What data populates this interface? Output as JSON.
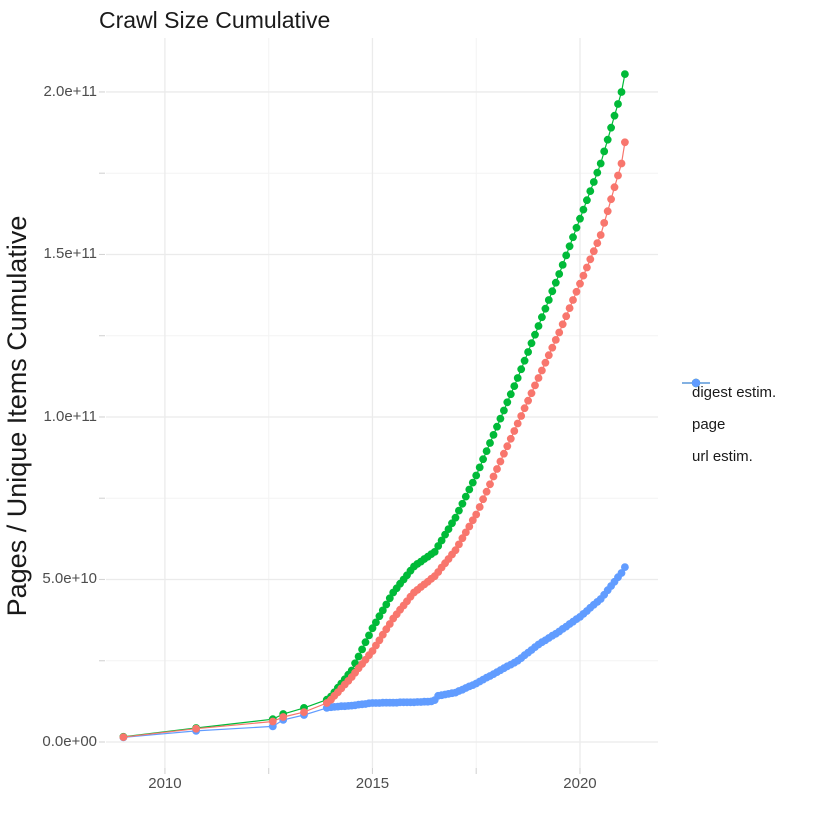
{
  "title": "Crawl Size Cumulative",
  "y_axis_label": "Pages / Unique Items Cumulative",
  "chart_data": {
    "type": "line",
    "title": "Crawl Size Cumulative",
    "xlabel": "",
    "ylabel": "Pages / Unique Items Cumulative",
    "unit": "billions of pages (1e9)",
    "grid": "on",
    "legend_position": "right",
    "style": {
      "background": "#ffffff",
      "major_grid_color": "#ebebeb",
      "minor_grid_color": "#f3f3f3",
      "tick_mark_color": "#d4d4d4",
      "tick_label_color": "#4d4d4d",
      "text_color": "#1a1a1a"
    },
    "x_axis": {
      "domain": [
        2008.58,
        2021.88
      ],
      "ticks": [
        {
          "label": "2010",
          "value": 2010
        },
        {
          "label": "2015",
          "value": 2015
        },
        {
          "label": "2020",
          "value": 2020
        }
      ],
      "minor": [
        2012.5,
        2017.5
      ]
    },
    "y_axis": {
      "domain": [
        -8,
        216.6
      ],
      "ticks": [
        {
          "label": "0.0e+00",
          "value": 0
        },
        {
          "label": "5.0e+10",
          "value": 50
        },
        {
          "label": "1.0e+11",
          "value": 100
        },
        {
          "label": "1.5e+11",
          "value": 150
        },
        {
          "label": "2.0e+11",
          "value": 200
        }
      ],
      "minor": [
        25,
        75,
        125,
        175
      ]
    },
    "series": [
      {
        "name": "digest estim.",
        "color": "#F8766D",
        "points": [
          [
            2009,
            1.5
          ],
          [
            2010.75,
            4.1
          ],
          [
            2012.6,
            6.3
          ],
          [
            2012.85,
            7.7
          ],
          [
            2013.35,
            9.2
          ],
          [
            2013.9,
            12
          ],
          [
            2014,
            13
          ],
          [
            2014.083,
            14.2
          ],
          [
            2014.167,
            15.3
          ],
          [
            2014.25,
            16.5
          ],
          [
            2014.333,
            17.7
          ],
          [
            2014.417,
            18.8
          ],
          [
            2014.5,
            20
          ],
          [
            2014.583,
            21.3
          ],
          [
            2014.667,
            22.7
          ],
          [
            2014.75,
            24
          ],
          [
            2014.833,
            25.3
          ],
          [
            2014.917,
            26.7
          ],
          [
            2015,
            28
          ],
          [
            2015.083,
            29.7
          ],
          [
            2015.167,
            31.3
          ],
          [
            2015.25,
            33
          ],
          [
            2015.333,
            34.7
          ],
          [
            2015.417,
            36.3
          ],
          [
            2015.5,
            38
          ],
          [
            2015.583,
            39.3
          ],
          [
            2015.667,
            40.7
          ],
          [
            2015.75,
            42
          ],
          [
            2015.833,
            43.3
          ],
          [
            2015.917,
            44.7
          ],
          [
            2016,
            46
          ],
          [
            2016.083,
            46.8
          ],
          [
            2016.167,
            47.7
          ],
          [
            2016.25,
            48.5
          ],
          [
            2016.333,
            49.3
          ],
          [
            2016.417,
            50.2
          ],
          [
            2016.5,
            51
          ],
          [
            2016.583,
            52.3
          ],
          [
            2016.667,
            53.7
          ],
          [
            2016.75,
            55
          ],
          [
            2016.833,
            56.3
          ],
          [
            2016.917,
            57.7
          ],
          [
            2017,
            59
          ],
          [
            2017.083,
            60.8
          ],
          [
            2017.167,
            62.7
          ],
          [
            2017.25,
            64.5
          ],
          [
            2017.333,
            66.3
          ],
          [
            2017.417,
            68.2
          ],
          [
            2017.5,
            70
          ],
          [
            2017.583,
            72.3
          ],
          [
            2017.667,
            74.7
          ],
          [
            2017.75,
            77
          ],
          [
            2017.833,
            79.3
          ],
          [
            2017.917,
            81.7
          ],
          [
            2018,
            84
          ],
          [
            2018.083,
            86.3
          ],
          [
            2018.167,
            88.7
          ],
          [
            2018.25,
            91
          ],
          [
            2018.333,
            93.3
          ],
          [
            2018.417,
            95.7
          ],
          [
            2018.5,
            98
          ],
          [
            2018.583,
            100.3
          ],
          [
            2018.667,
            102.7
          ],
          [
            2018.75,
            105
          ],
          [
            2018.833,
            107.3
          ],
          [
            2018.917,
            109.7
          ],
          [
            2019,
            112
          ],
          [
            2019.083,
            114.3
          ],
          [
            2019.167,
            116.7
          ],
          [
            2019.25,
            119
          ],
          [
            2019.333,
            121.3
          ],
          [
            2019.417,
            123.7
          ],
          [
            2019.5,
            126
          ],
          [
            2019.583,
            128.5
          ],
          [
            2019.667,
            131
          ],
          [
            2019.75,
            133.5
          ],
          [
            2019.833,
            136
          ],
          [
            2019.917,
            138.5
          ],
          [
            2020,
            141
          ],
          [
            2020.083,
            143.5
          ],
          [
            2020.167,
            146
          ],
          [
            2020.25,
            148.5
          ],
          [
            2020.333,
            151
          ],
          [
            2020.417,
            153.5
          ],
          [
            2020.5,
            156
          ],
          [
            2020.583,
            159.7
          ],
          [
            2020.667,
            163.3
          ],
          [
            2020.75,
            167
          ],
          [
            2020.833,
            170.7
          ],
          [
            2020.917,
            174.3
          ],
          [
            2021,
            178
          ],
          [
            2021.083,
            184.5
          ]
        ]
      },
      {
        "name": "page",
        "color": "#00BA38",
        "points": [
          [
            2009,
            1.6
          ],
          [
            2010.75,
            4.3
          ],
          [
            2012.6,
            7
          ],
          [
            2012.85,
            8.6
          ],
          [
            2013.35,
            10.5
          ],
          [
            2013.9,
            13
          ],
          [
            2014,
            14
          ],
          [
            2014.083,
            15.3
          ],
          [
            2014.167,
            16.7
          ],
          [
            2014.25,
            18
          ],
          [
            2014.333,
            19.3
          ],
          [
            2014.417,
            20.7
          ],
          [
            2014.5,
            22
          ],
          [
            2014.583,
            24.2
          ],
          [
            2014.667,
            26.3
          ],
          [
            2014.75,
            28.5
          ],
          [
            2014.833,
            30.7
          ],
          [
            2014.917,
            32.8
          ],
          [
            2015,
            35
          ],
          [
            2015.083,
            36.8
          ],
          [
            2015.167,
            38.7
          ],
          [
            2015.25,
            40.5
          ],
          [
            2015.333,
            42.3
          ],
          [
            2015.417,
            44.2
          ],
          [
            2015.5,
            46
          ],
          [
            2015.583,
            47.3
          ],
          [
            2015.667,
            48.7
          ],
          [
            2015.75,
            50
          ],
          [
            2015.833,
            51.3
          ],
          [
            2015.917,
            52.7
          ],
          [
            2016,
            54
          ],
          [
            2016.083,
            54.8
          ],
          [
            2016.167,
            55.5
          ],
          [
            2016.25,
            56.3
          ],
          [
            2016.333,
            57
          ],
          [
            2016.417,
            57.8
          ],
          [
            2016.5,
            58.5
          ],
          [
            2016.583,
            60.3
          ],
          [
            2016.667,
            62
          ],
          [
            2016.75,
            63.8
          ],
          [
            2016.833,
            65.5
          ],
          [
            2016.917,
            67.3
          ],
          [
            2017,
            69
          ],
          [
            2017.083,
            71.2
          ],
          [
            2017.167,
            73.3
          ],
          [
            2017.25,
            75.5
          ],
          [
            2017.333,
            77.7
          ],
          [
            2017.417,
            79.8
          ],
          [
            2017.5,
            82
          ],
          [
            2017.583,
            84.5
          ],
          [
            2017.667,
            87
          ],
          [
            2017.75,
            89.5
          ],
          [
            2017.833,
            92
          ],
          [
            2017.917,
            94.5
          ],
          [
            2018,
            97
          ],
          [
            2018.083,
            99.5
          ],
          [
            2018.167,
            102
          ],
          [
            2018.25,
            104.5
          ],
          [
            2018.333,
            107
          ],
          [
            2018.417,
            109.5
          ],
          [
            2018.5,
            112
          ],
          [
            2018.583,
            114.7
          ],
          [
            2018.667,
            117.3
          ],
          [
            2018.75,
            120
          ],
          [
            2018.833,
            122.7
          ],
          [
            2018.917,
            125.3
          ],
          [
            2019,
            128
          ],
          [
            2019.083,
            130.7
          ],
          [
            2019.167,
            133.3
          ],
          [
            2019.25,
            136
          ],
          [
            2019.333,
            138.7
          ],
          [
            2019.417,
            141.3
          ],
          [
            2019.5,
            144
          ],
          [
            2019.583,
            146.8
          ],
          [
            2019.667,
            149.7
          ],
          [
            2019.75,
            152.5
          ],
          [
            2019.833,
            155.3
          ],
          [
            2019.917,
            158.2
          ],
          [
            2020,
            161
          ],
          [
            2020.083,
            163.8
          ],
          [
            2020.167,
            166.7
          ],
          [
            2020.25,
            169.5
          ],
          [
            2020.333,
            172.3
          ],
          [
            2020.417,
            175.2
          ],
          [
            2020.5,
            178
          ],
          [
            2020.583,
            181.7
          ],
          [
            2020.667,
            185.3
          ],
          [
            2020.75,
            189
          ],
          [
            2020.833,
            192.7
          ],
          [
            2020.917,
            196.3
          ],
          [
            2021,
            200
          ],
          [
            2021.083,
            205.5
          ]
        ]
      },
      {
        "name": "url estim.",
        "color": "#619CFF",
        "points": [
          [
            2009,
            1.4
          ],
          [
            2010.75,
            3.4
          ],
          [
            2012.6,
            4.8
          ],
          [
            2012.85,
            6.8
          ],
          [
            2013.35,
            8.3
          ],
          [
            2013.9,
            10.5
          ],
          [
            2014,
            10.7
          ],
          [
            2014.083,
            10.8
          ],
          [
            2014.167,
            10.9
          ],
          [
            2014.25,
            11
          ],
          [
            2014.333,
            11
          ],
          [
            2014.417,
            11.1
          ],
          [
            2014.5,
            11.2
          ],
          [
            2014.583,
            11.3
          ],
          [
            2014.667,
            11.5
          ],
          [
            2014.75,
            11.6
          ],
          [
            2014.833,
            11.7
          ],
          [
            2014.917,
            11.9
          ],
          [
            2015,
            12
          ],
          [
            2015.083,
            12
          ],
          [
            2015.167,
            12
          ],
          [
            2015.25,
            12.1
          ],
          [
            2015.333,
            12.1
          ],
          [
            2015.417,
            12.1
          ],
          [
            2015.5,
            12.1
          ],
          [
            2015.583,
            12.1
          ],
          [
            2015.667,
            12.2
          ],
          [
            2015.75,
            12.2
          ],
          [
            2015.833,
            12.2
          ],
          [
            2015.917,
            12.2
          ],
          [
            2016,
            12.2
          ],
          [
            2016.083,
            12.3
          ],
          [
            2016.167,
            12.3
          ],
          [
            2016.25,
            12.4
          ],
          [
            2016.333,
            12.4
          ],
          [
            2016.417,
            12.5
          ],
          [
            2016.5,
            12.9
          ],
          [
            2016.583,
            14.2
          ],
          [
            2016.667,
            14.4
          ],
          [
            2016.75,
            14.6
          ],
          [
            2016.833,
            14.8
          ],
          [
            2016.917,
            15
          ],
          [
            2017,
            15.2
          ],
          [
            2017.083,
            15.7
          ],
          [
            2017.167,
            16.1
          ],
          [
            2017.25,
            16.6
          ],
          [
            2017.333,
            17.1
          ],
          [
            2017.417,
            17.5
          ],
          [
            2017.5,
            18
          ],
          [
            2017.583,
            18.6
          ],
          [
            2017.667,
            19.2
          ],
          [
            2017.75,
            19.8
          ],
          [
            2017.833,
            20.3
          ],
          [
            2017.917,
            20.9
          ],
          [
            2018,
            21.5
          ],
          [
            2018.083,
            22.1
          ],
          [
            2018.167,
            22.7
          ],
          [
            2018.25,
            23.3
          ],
          [
            2018.333,
            23.8
          ],
          [
            2018.417,
            24.4
          ],
          [
            2018.5,
            25
          ],
          [
            2018.583,
            25.8
          ],
          [
            2018.667,
            26.7
          ],
          [
            2018.75,
            27.5
          ],
          [
            2018.833,
            28.3
          ],
          [
            2018.917,
            29.2
          ],
          [
            2019,
            30
          ],
          [
            2019.083,
            30.7
          ],
          [
            2019.167,
            31.3
          ],
          [
            2019.25,
            32
          ],
          [
            2019.333,
            32.7
          ],
          [
            2019.417,
            33.3
          ],
          [
            2019.5,
            34
          ],
          [
            2019.583,
            34.8
          ],
          [
            2019.667,
            35.5
          ],
          [
            2019.75,
            36.3
          ],
          [
            2019.833,
            37
          ],
          [
            2019.917,
            37.8
          ],
          [
            2020,
            38.5
          ],
          [
            2020.083,
            39.4
          ],
          [
            2020.167,
            40.3
          ],
          [
            2020.25,
            41.3
          ],
          [
            2020.333,
            42.2
          ],
          [
            2020.417,
            43.1
          ],
          [
            2020.5,
            44
          ],
          [
            2020.583,
            45.3
          ],
          [
            2020.667,
            46.7
          ],
          [
            2020.75,
            48
          ],
          [
            2020.833,
            49.3
          ],
          [
            2020.917,
            50.7
          ],
          [
            2021,
            52
          ],
          [
            2021.083,
            53.8
          ]
        ]
      }
    ]
  }
}
